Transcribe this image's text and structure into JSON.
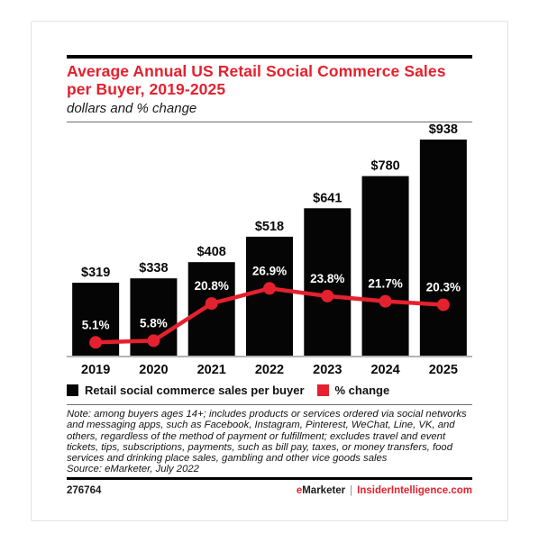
{
  "header": {
    "title": "Average Annual US Retail Social Commerce Sales per Buyer, 2019-2025",
    "subtitle": "dollars and % change"
  },
  "legend": {
    "bars": "Retail social commerce sales per buyer",
    "line": "% change"
  },
  "footnote": {
    "note": "Note: among buyers ages 14+; includes products or services ordered via social networks and messaging apps, such as Facebook, Instagram, Pinterest, WeChat, Line, VK, and others, regardless of the method of payment or fulfillment; excludes travel and event tickets, tips, subscriptions, payments, such as bill pay, taxes, or money transfers, food services and drinking place sales, gambling and other vice goods sales",
    "source": "Source: eMarketer, July 2022"
  },
  "footer": {
    "id": "276764",
    "brand_e": "e",
    "brand_rest": "Marketer",
    "separator": "|",
    "site": "InsiderIntelligence.com"
  },
  "colors": {
    "accent_red": "#e4212e",
    "bar_black": "#050505",
    "axis_gray": "#b3b3b3"
  },
  "chart_data": {
    "type": "combo",
    "categories": [
      "2019",
      "2020",
      "2021",
      "2022",
      "2023",
      "2024",
      "2025"
    ],
    "series": [
      {
        "name": "Retail social commerce sales per buyer",
        "type": "bar",
        "unit": "dollars",
        "values": [
          319,
          338,
          408,
          518,
          641,
          780,
          938
        ]
      },
      {
        "name": "% change",
        "type": "line",
        "unit": "percent",
        "values": [
          5.1,
          5.8,
          20.8,
          26.9,
          23.8,
          21.7,
          20.3
        ]
      }
    ],
    "title": "Average Annual US Retail Social Commerce Sales per Buyer, 2019-2025",
    "subtitle": "dollars and % change",
    "value_label_format": "$#",
    "pct_label_format": "#.#%",
    "grid": false,
    "legend_position": "bottom-left"
  }
}
